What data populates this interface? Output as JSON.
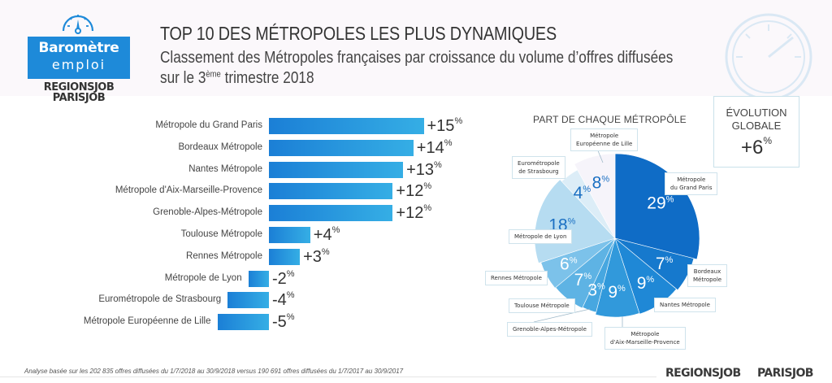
{
  "logo": {
    "title": "Baromètre",
    "subtitle": "emploi",
    "brand_1": "REGIONSJOB",
    "brand_2": "PARISJOB",
    "icon": "gauge-icon"
  },
  "header": {
    "title": "TOP 10 DES MÉTROPOLES LES PLUS DYNAMIQUES",
    "subtitle_line1": "Classement des Métropoles françaises par croissance du volume d’offres diffusées",
    "subtitle_line2_prefix": "sur le 3",
    "subtitle_line2_sup": "ème",
    "subtitle_line2_suffix": " trimestre 2018"
  },
  "evolution": {
    "label_line1": "ÉVOLUTION",
    "label_line2": "GLOBALE",
    "value": "+6",
    "unit": "%"
  },
  "colors": {
    "brand_blue": "#1e8ad9",
    "bar_start": "#1b7fd6",
    "bar_end": "#35aee5"
  },
  "chart_data": [
    {
      "type": "bar",
      "orientation": "horizontal",
      "title": "Classement des Métropoles françaises par croissance du volume d’offres diffusées",
      "unit": "%",
      "categories": [
        "Métropole du Grand Paris",
        "Bordeaux Métropole",
        "Nantes Métropole",
        "Métropole d'Aix-Marseille-Provence",
        "Grenoble-Alpes-Métropole",
        "Toulouse Métropole",
        "Rennes Métropole",
        "Métropole de Lyon",
        "Eurométropole de Strasbourg",
        "Métropole Européenne de Lille"
      ],
      "values": [
        15,
        14,
        13,
        12,
        12,
        4,
        3,
        -2,
        -4,
        -5
      ],
      "labels": [
        "+15",
        "+14",
        "+13",
        "+12",
        "+12",
        "+4",
        "+3",
        "-2",
        "-4",
        "-5"
      ],
      "grid": false
    },
    {
      "type": "pie",
      "title": "PART DE CHAQUE MÉTROPÔLE",
      "unit": "%",
      "categories": [
        "Métropole du Grand Paris",
        "Bordeaux Métropole",
        "Nantes Métropole",
        "Métropole d'Aix-Marseille-Provence",
        "Grenoble-Alpes-Métropole",
        "Toulouse Métropole",
        "Rennes Métropole",
        "Métropole de Lyon",
        "Eurométropole de Strasbourg",
        "Métropole Européenne de Lille"
      ],
      "callouts": [
        [
          "Métropole",
          "du Grand Paris"
        ],
        [
          "Bordeaux",
          "Métropole"
        ],
        [
          "Nantes Métropole"
        ],
        [
          "Métropole",
          "d'Aix-Marseille-Provence"
        ],
        [
          "Grenoble-Alpes-Métropole"
        ],
        [
          "Toulouse Métropole"
        ],
        [
          "Rennes Métropole"
        ],
        [
          "Métropole de Lyon"
        ],
        [
          "Eurométropole",
          "de Strasbourg"
        ],
        [
          "Métropole",
          "Européenne de Lille"
        ]
      ],
      "values": [
        29,
        7,
        9,
        9,
        3,
        7,
        6,
        18,
        4,
        8
      ],
      "colors": [
        "#0f6cc6",
        "#1679cd",
        "#1f88d6",
        "#3199db",
        "#47a7e0",
        "#5eb3e4",
        "#7cc2ea",
        "#b6dcf1",
        "#dcedf7",
        "#f6f4fa"
      ],
      "label_colors": [
        "#ffffff",
        "#ffffff",
        "#ffffff",
        "#ffffff",
        "#ffffff",
        "#ffffff",
        "#ffffff",
        "#1a6fc2",
        "#1a6fc2",
        "#1a6fc2"
      ]
    }
  ],
  "footer": {
    "note": "Analyse basée sur les 202 835 offres diffusées du 1/7/2018 au 30/9/2018 versus 190 691 offres diffusées du 1/7/2017 au 30/9/2017",
    "brand_1": "REGIONSJOB",
    "brand_2": "PARISJOB"
  }
}
